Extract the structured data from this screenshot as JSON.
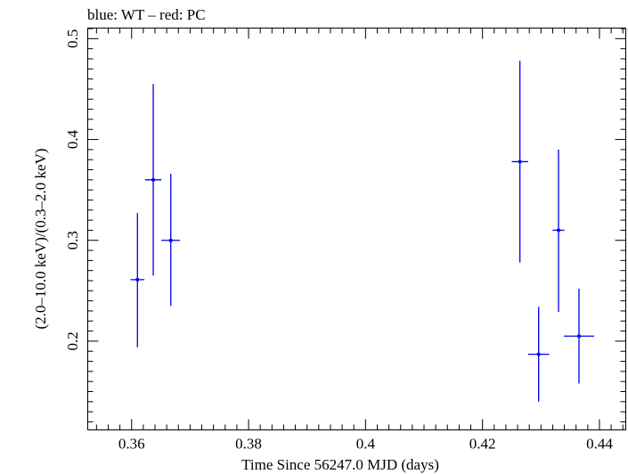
{
  "chart_data": {
    "type": "scatter",
    "title": "blue: WT – red: PC",
    "xlabel": "Time Since 56247.0 MJD (days)",
    "ylabel": "(2.0–10.0 keV)/(0.3–2.0 keV)",
    "xlim": [
      0.3525,
      0.4445
    ],
    "ylim": [
      0.112,
      0.5105
    ],
    "xticks": [
      0.36,
      0.38,
      0.4,
      0.42,
      0.44
    ],
    "xtick_labels": [
      "0.36",
      "0.38",
      "0.4",
      "0.42",
      "0.44"
    ],
    "yticks": [
      0.2,
      0.3,
      0.4,
      0.5
    ],
    "ytick_labels": [
      "0.2",
      "0.3",
      "0.4",
      "0.5"
    ],
    "grid": false,
    "series": [
      {
        "color": "#0000ee",
        "points": [
          {
            "x": 0.361,
            "y": 0.261,
            "xerr": 0.0012,
            "ylo": 0.194,
            "yhi": 0.327
          },
          {
            "x": 0.3637,
            "y": 0.36,
            "xerr": 0.0014,
            "ylo": 0.265,
            "yhi": 0.455
          },
          {
            "x": 0.3667,
            "y": 0.3,
            "xerr": 0.0016,
            "ylo": 0.235,
            "yhi": 0.366
          },
          {
            "x": 0.4264,
            "y": 0.378,
            "xerr": 0.0014,
            "ylo": 0.278,
            "yhi": 0.478
          },
          {
            "x": 0.4296,
            "y": 0.187,
            "xerr": 0.0018,
            "ylo": 0.14,
            "yhi": 0.234
          },
          {
            "x": 0.433,
            "y": 0.31,
            "xerr": 0.001,
            "ylo": 0.229,
            "yhi": 0.39
          },
          {
            "x": 0.4365,
            "y": 0.205,
            "xerr": 0.0026,
            "ylo": 0.158,
            "yhi": 0.252
          }
        ]
      }
    ]
  }
}
